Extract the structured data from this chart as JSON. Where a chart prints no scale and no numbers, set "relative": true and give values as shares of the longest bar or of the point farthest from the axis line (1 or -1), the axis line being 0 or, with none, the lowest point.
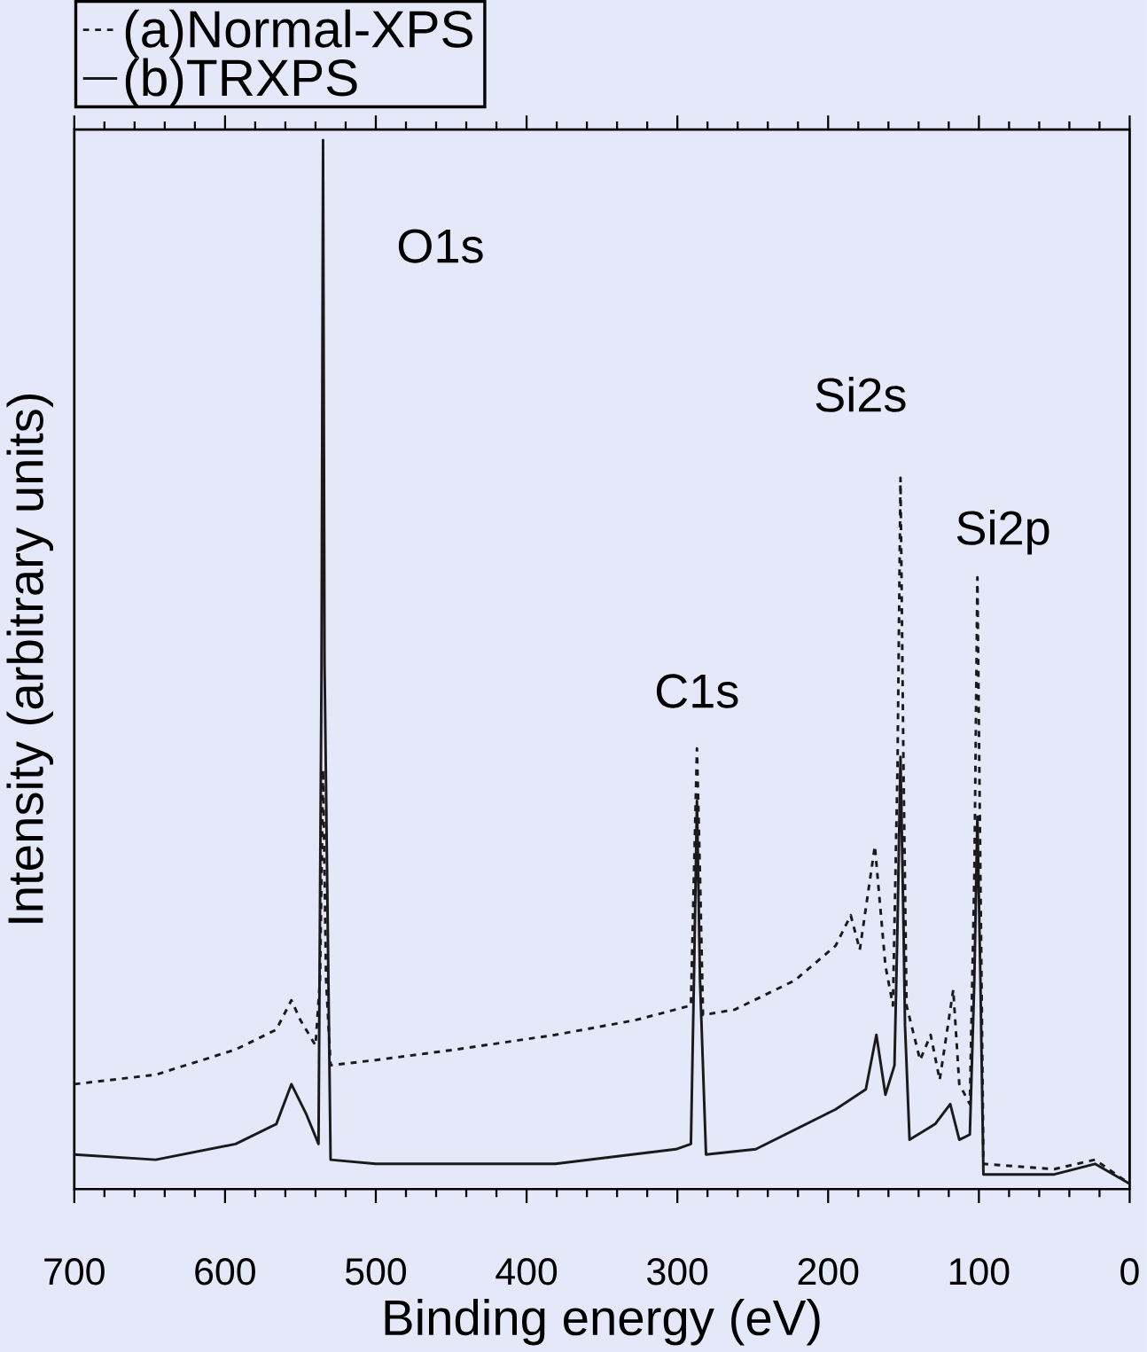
{
  "chart_data": {
    "type": "line",
    "relative": true,
    "xlabel": "Binding energy (eV)",
    "ylabel": "Intensity (arbitrary units)",
    "xlim": [
      700,
      0
    ],
    "xticks": [
      700,
      600,
      500,
      400,
      300,
      200,
      100,
      0
    ],
    "legend": "top left",
    "annotations": [
      "O1s",
      "C1s",
      "Si2s",
      "Si2p"
    ],
    "series": [
      {
        "name": "(a)Normal-XPS",
        "color": "#1a1a1a",
        "line_style": "dashed",
        "x": [
          700,
          646,
          593,
          566,
          556,
          550,
          540,
          537,
          535,
          533,
          530,
          500,
          447,
          381,
          328,
          291,
          289,
          287,
          285,
          283,
          262,
          222,
          195,
          185,
          179,
          169,
          162,
          157,
          154,
          152,
          150,
          148,
          139,
          132,
          126,
          117,
          113,
          106,
          103,
          101,
          99,
          97,
          50,
          23,
          0
        ],
        "values": [
          0.1,
          0.109,
          0.133,
          0.152,
          0.18,
          0.161,
          0.137,
          0.2,
          0.4,
          0.2,
          0.118,
          0.123,
          0.133,
          0.147,
          0.161,
          0.175,
          0.3,
          0.42,
          0.3,
          0.166,
          0.171,
          0.199,
          0.232,
          0.261,
          0.228,
          0.327,
          0.213,
          0.175,
          0.4,
          0.678,
          0.4,
          0.175,
          0.123,
          0.147,
          0.104,
          0.19,
          0.1,
          0.081,
          0.3,
          0.583,
          0.3,
          0.024,
          0.019,
          0.028,
          0.005
        ]
      },
      {
        "name": "(b)TRXPS",
        "color": "#1a1a1a",
        "line_style": "solid",
        "x": [
          700,
          646,
          593,
          566,
          556,
          546,
          538,
          536,
          535,
          534,
          530,
          500,
          381,
          301,
          291,
          289,
          287,
          285,
          281,
          248,
          195,
          175,
          168,
          162,
          156,
          154,
          152,
          150,
          149,
          146,
          129,
          119,
          113,
          106,
          103,
          101,
          99,
          97,
          50,
          23,
          0
        ],
        "values": [
          0.033,
          0.028,
          0.043,
          0.062,
          0.1,
          0.071,
          0.043,
          0.5,
          1.0,
          0.5,
          0.028,
          0.024,
          0.024,
          0.038,
          0.043,
          0.2,
          0.37,
          0.2,
          0.033,
          0.038,
          0.076,
          0.095,
          0.147,
          0.09,
          0.118,
          0.25,
          0.412,
          0.25,
          0.156,
          0.047,
          0.062,
          0.081,
          0.047,
          0.052,
          0.2,
          0.355,
          0.2,
          0.014,
          0.014,
          0.024,
          0.005
        ]
      }
    ]
  }
}
